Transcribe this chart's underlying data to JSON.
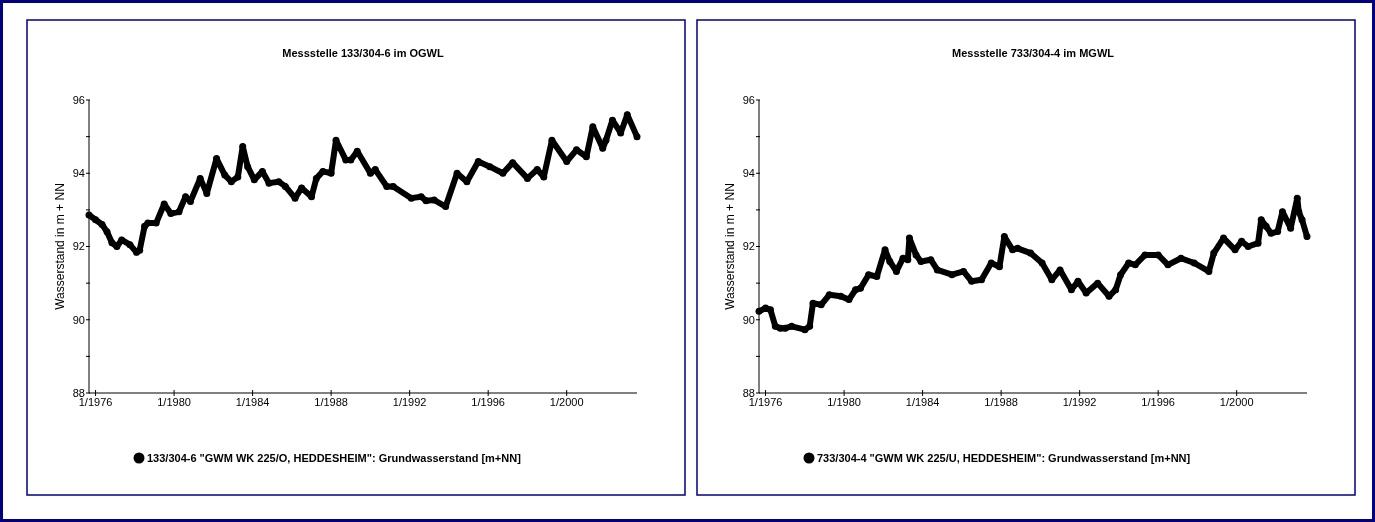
{
  "chart_data": [
    {
      "type": "line",
      "title": "Messstelle 133/304-6 im OGWL",
      "ylabel": "Wasserstand in m + NN",
      "legend": "bottom",
      "marker": "circle",
      "xlim": [
        "1975-09",
        "2003-08"
      ],
      "ylim": [
        88,
        96
      ],
      "xticks": [
        {
          "value": "1976-01",
          "label": "1/1976"
        },
        {
          "value": "1980-01",
          "label": "1/1980"
        },
        {
          "value": "1984-01",
          "label": "1/1984"
        },
        {
          "value": "1988-01",
          "label": "1/1988"
        },
        {
          "value": "1992-01",
          "label": "1/1992"
        },
        {
          "value": "1996-01",
          "label": "1/1996"
        },
        {
          "value": "2000-01",
          "label": "1/2000"
        }
      ],
      "yticks": [
        88,
        {
          "value": 89,
          "label": null
        },
        90,
        {
          "value": 91,
          "label": null
        },
        92,
        {
          "value": 93,
          "label": null
        },
        94,
        {
          "value": 95,
          "label": null
        },
        96
      ],
      "series": [
        {
          "name": "133/304-6 \"GWM WK 225/O, HEDDESHEIM\": Grundwasserstand [m+NN]",
          "color": "#000000",
          "x": [
            "1975-09",
            "1976-01",
            "1976-05",
            "1976-08",
            "1976-11",
            "1977-02",
            "1977-05",
            "1977-10",
            "1978-02",
            "1978-04",
            "1978-07",
            "1978-09",
            "1979-02",
            "1979-07",
            "1979-11",
            "1980-04",
            "1980-08",
            "1980-11",
            "1981-05",
            "1981-09",
            "1982-03",
            "1982-08",
            "1982-12",
            "1983-04",
            "1983-07",
            "1983-10",
            "1984-02",
            "1984-07",
            "1984-11",
            "1985-05",
            "1985-09",
            "1986-03",
            "1986-07",
            "1987-01",
            "1987-04",
            "1987-08",
            "1988-01",
            "1988-04",
            "1988-10",
            "1989-01",
            "1989-05",
            "1990-01",
            "1990-04",
            "1990-11",
            "1991-03",
            "1992-02",
            "1992-08",
            "1992-11",
            "1993-04",
            "1993-11",
            "1994-06",
            "1994-12",
            "1995-07",
            "1996-02",
            "1996-10",
            "1997-04",
            "1998-01",
            "1998-07",
            "1998-11",
            "1999-04",
            "2000-01",
            "2000-07",
            "2001-01",
            "2001-05",
            "2001-11",
            "2002-01",
            "2002-05",
            "2002-10",
            "2003-02",
            "2003-08"
          ],
          "values": [
            92.86,
            92.73,
            92.6,
            92.4,
            92.1,
            92.0,
            92.18,
            92.05,
            91.84,
            91.9,
            92.55,
            92.64,
            92.64,
            93.16,
            92.9,
            92.95,
            93.36,
            93.23,
            93.86,
            93.45,
            94.4,
            93.95,
            93.77,
            93.9,
            94.73,
            94.18,
            93.82,
            94.05,
            93.73,
            93.77,
            93.64,
            93.32,
            93.6,
            93.36,
            93.86,
            94.05,
            94.0,
            94.9,
            94.36,
            94.36,
            94.6,
            94.0,
            94.1,
            93.64,
            93.64,
            93.32,
            93.36,
            93.25,
            93.27,
            93.09,
            94.0,
            93.77,
            94.32,
            94.18,
            94.0,
            94.29,
            93.86,
            94.1,
            93.9,
            94.9,
            94.32,
            94.64,
            94.45,
            95.27,
            94.68,
            94.9,
            95.45,
            95.1,
            95.6,
            95.0
          ]
        }
      ]
    },
    {
      "type": "line",
      "title": "Messstelle 733/304-4 im MGWL",
      "ylabel": "Wasserstand in m + NN",
      "legend": "bottom",
      "marker": "circle",
      "xlim": [
        "1975-09",
        "2003-08"
      ],
      "ylim": [
        88,
        96
      ],
      "xticks": [
        {
          "value": "1976-01",
          "label": "1/1976"
        },
        {
          "value": "1980-01",
          "label": "1/1980"
        },
        {
          "value": "1984-01",
          "label": "1/1984"
        },
        {
          "value": "1988-01",
          "label": "1/1988"
        },
        {
          "value": "1992-01",
          "label": "1/1992"
        },
        {
          "value": "1996-01",
          "label": "1/1996"
        },
        {
          "value": "2000-01",
          "label": "1/2000"
        }
      ],
      "yticks": [
        88,
        {
          "value": 89,
          "label": null
        },
        90,
        {
          "value": 91,
          "label": null
        },
        92,
        {
          "value": 93,
          "label": null
        },
        94,
        {
          "value": 95,
          "label": null
        },
        96
      ],
      "series": [
        {
          "name": "733/304-4 \"GWM WK 225/U, HEDDESHEIM\": Grundwasserstand [m+NN]",
          "color": "#000000",
          "x": [
            "1975-09",
            "1976-01",
            "1976-04",
            "1976-07",
            "1976-10",
            "1977-01",
            "1977-05",
            "1978-01",
            "1978-04",
            "1978-06",
            "1978-11",
            "1979-04",
            "1979-11",
            "1980-04",
            "1980-08",
            "1980-11",
            "1981-04",
            "1981-09",
            "1982-02",
            "1982-05",
            "1982-09",
            "1983-01",
            "1983-04",
            "1983-05",
            "1983-09",
            "1983-12",
            "1984-06",
            "1984-10",
            "1985-07",
            "1986-02",
            "1986-07",
            "1987-01",
            "1987-07",
            "1987-12",
            "1988-03",
            "1988-08",
            "1988-11",
            "1989-07",
            "1990-02",
            "1990-08",
            "1991-01",
            "1991-08",
            "1991-12",
            "1992-05",
            "1992-12",
            "1993-07",
            "1993-11",
            "1994-02",
            "1994-07",
            "1994-11",
            "1995-05",
            "1996-01",
            "1996-07",
            "1997-03",
            "1997-11",
            "1998-08",
            "1998-11",
            "1999-05",
            "1999-12",
            "2000-04",
            "2000-08",
            "2001-02",
            "2001-04",
            "2001-07",
            "2001-10",
            "2002-02",
            "2002-05",
            "2002-10",
            "2003-02",
            "2003-03",
            "2003-05",
            "2003-08"
          ],
          "values": [
            90.23,
            90.32,
            90.27,
            89.82,
            89.77,
            89.77,
            89.82,
            89.73,
            89.82,
            90.45,
            90.41,
            90.68,
            90.64,
            90.55,
            90.82,
            90.86,
            91.23,
            91.18,
            91.91,
            91.59,
            91.32,
            91.68,
            91.64,
            92.23,
            91.77,
            91.59,
            91.64,
            91.36,
            91.23,
            91.32,
            91.05,
            91.09,
            91.55,
            91.45,
            92.27,
            91.91,
            91.95,
            91.82,
            91.55,
            91.09,
            91.36,
            90.82,
            91.05,
            90.73,
            91.0,
            90.64,
            90.82,
            91.23,
            91.55,
            91.5,
            91.77,
            91.77,
            91.5,
            91.68,
            91.55,
            91.32,
            91.82,
            92.23,
            91.91,
            92.14,
            92.0,
            92.09,
            92.73,
            92.55,
            92.36,
            92.41,
            92.95,
            92.5,
            93.32,
            92.95,
            92.73,
            92.27
          ]
        }
      ]
    }
  ]
}
